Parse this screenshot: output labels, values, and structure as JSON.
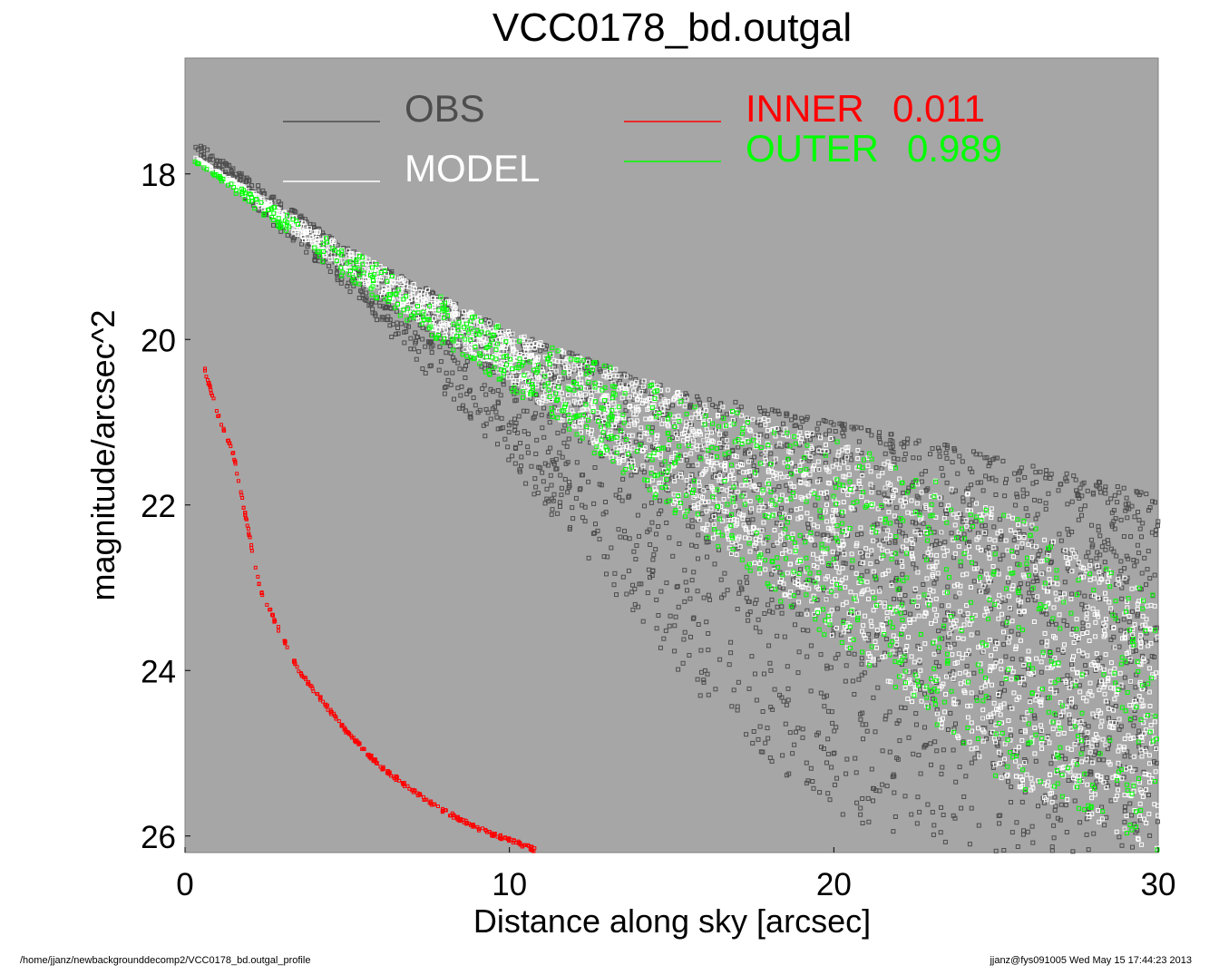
{
  "chart_data": {
    "type": "scatter",
    "title": "VCC0178_bd.outgal",
    "xlabel": "Distance along sky [arcsec]",
    "ylabel": "magnitude/arcsec^2",
    "xlim": [
      0,
      30
    ],
    "ylim": [
      26.2,
      16.6
    ],
    "y_inverted": true,
    "x_ticks": [
      "0",
      "10",
      "20",
      "30"
    ],
    "y_ticks": [
      "18",
      "20",
      "22",
      "24",
      "26"
    ],
    "plot_background": "#a6a6a6",
    "grid": false,
    "legend": [
      {
        "label": "OBS",
        "color": "#4d4d4d"
      },
      {
        "label": "MODEL",
        "color": "#ffffff"
      },
      {
        "label": "INNER",
        "value": "0.011",
        "color": "#ff0000"
      },
      {
        "label": "OUTER",
        "value": "0.989",
        "color": "#00ff00"
      }
    ],
    "series": [
      {
        "name": "OBS",
        "color": "#4d4d4d",
        "upper_edge": {
          "x": [
            0.3,
            5,
            10,
            15,
            20,
            25,
            30
          ],
          "y": [
            17.6,
            18.9,
            19.9,
            20.6,
            21.0,
            21.4,
            21.9
          ]
        },
        "lower_edge": {
          "x": [
            0.3,
            5,
            10,
            15,
            20,
            25,
            30
          ],
          "y": [
            17.8,
            19.4,
            21.5,
            24.0,
            25.8,
            26.2,
            26.2
          ]
        }
      },
      {
        "name": "MODEL",
        "color": "#ffffff",
        "upper_edge": {
          "x": [
            0.3,
            5,
            10,
            15,
            20,
            25,
            30
          ],
          "y": [
            17.8,
            18.9,
            19.9,
            20.6,
            21.2,
            22.0,
            23.1
          ]
        },
        "lower_edge": {
          "x": [
            0.3,
            5,
            10,
            15,
            20,
            25,
            30
          ],
          "y": [
            17.8,
            19.2,
            20.5,
            22.0,
            23.6,
            25.3,
            26.2
          ]
        }
      },
      {
        "name": "INNER",
        "color": "#ff0000",
        "x": [
          0.6,
          1.0,
          1.5,
          2.0,
          2.3,
          3.0,
          3.5,
          4.0,
          4.5,
          5.0,
          5.5,
          6.0,
          6.5,
          7.0,
          7.5,
          8.0,
          8.5,
          9.0,
          9.5,
          10.0,
          10.5,
          10.8
        ],
        "y": [
          20.35,
          20.9,
          21.4,
          22.4,
          23.0,
          23.6,
          24.0,
          24.25,
          24.5,
          24.75,
          24.95,
          25.15,
          25.3,
          25.45,
          25.58,
          25.7,
          25.8,
          25.9,
          25.98,
          26.05,
          26.12,
          26.17
        ]
      },
      {
        "name": "OUTER",
        "color": "#00ff00",
        "upper_edge": {
          "x": [
            0.3,
            5,
            10,
            15,
            20,
            25,
            30
          ],
          "y": [
            17.85,
            18.9,
            19.9,
            20.6,
            21.2,
            22.0,
            23.1
          ]
        },
        "lower_edge": {
          "x": [
            0.3,
            5,
            10,
            15,
            20,
            25,
            30
          ],
          "y": [
            17.85,
            19.3,
            20.6,
            22.1,
            23.7,
            25.3,
            26.2
          ]
        }
      }
    ]
  },
  "footer": {
    "path": "/home/jjanz/newbackgrounddecomp2/VCC0178_bd.outgal_profile",
    "user_date": "jjanz@fys091005  Wed May 15 17:44:23 2013"
  }
}
